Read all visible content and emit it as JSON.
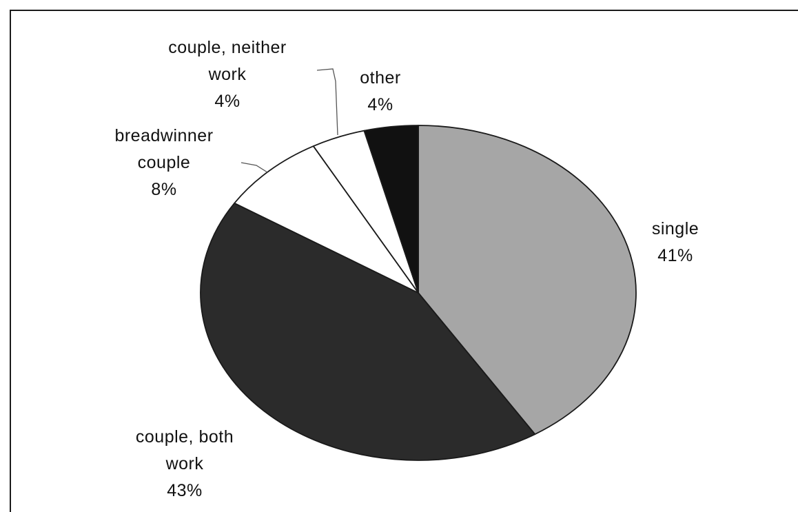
{
  "chart_data": {
    "type": "pie",
    "title": "",
    "slices": [
      {
        "name": "single",
        "value": 41,
        "value_label": "41%",
        "label_lines": [
          "single",
          "41%"
        ],
        "color": "#a6a6a6"
      },
      {
        "name": "couple, both work",
        "value": 43,
        "value_label": "43%",
        "label_lines": [
          "couple, both",
          "work",
          "43%"
        ],
        "color": "#2b2b2b"
      },
      {
        "name": "breadwinner couple",
        "value": 8,
        "value_label": "8%",
        "label_lines": [
          "breadwinner",
          "couple",
          "8%"
        ],
        "color": "#ffffff"
      },
      {
        "name": "couple, neither work",
        "value": 4,
        "value_label": "4%",
        "label_lines": [
          "couple, neither",
          "work",
          "4%"
        ],
        "color": "#ffffff"
      },
      {
        "name": "other",
        "value": 4,
        "value_label": "4%",
        "label_lines": [
          "other",
          "4%"
        ],
        "color": "#111111"
      }
    ],
    "start_angle": "12 o'clock",
    "direction": "clockwise",
    "legend": "none"
  }
}
